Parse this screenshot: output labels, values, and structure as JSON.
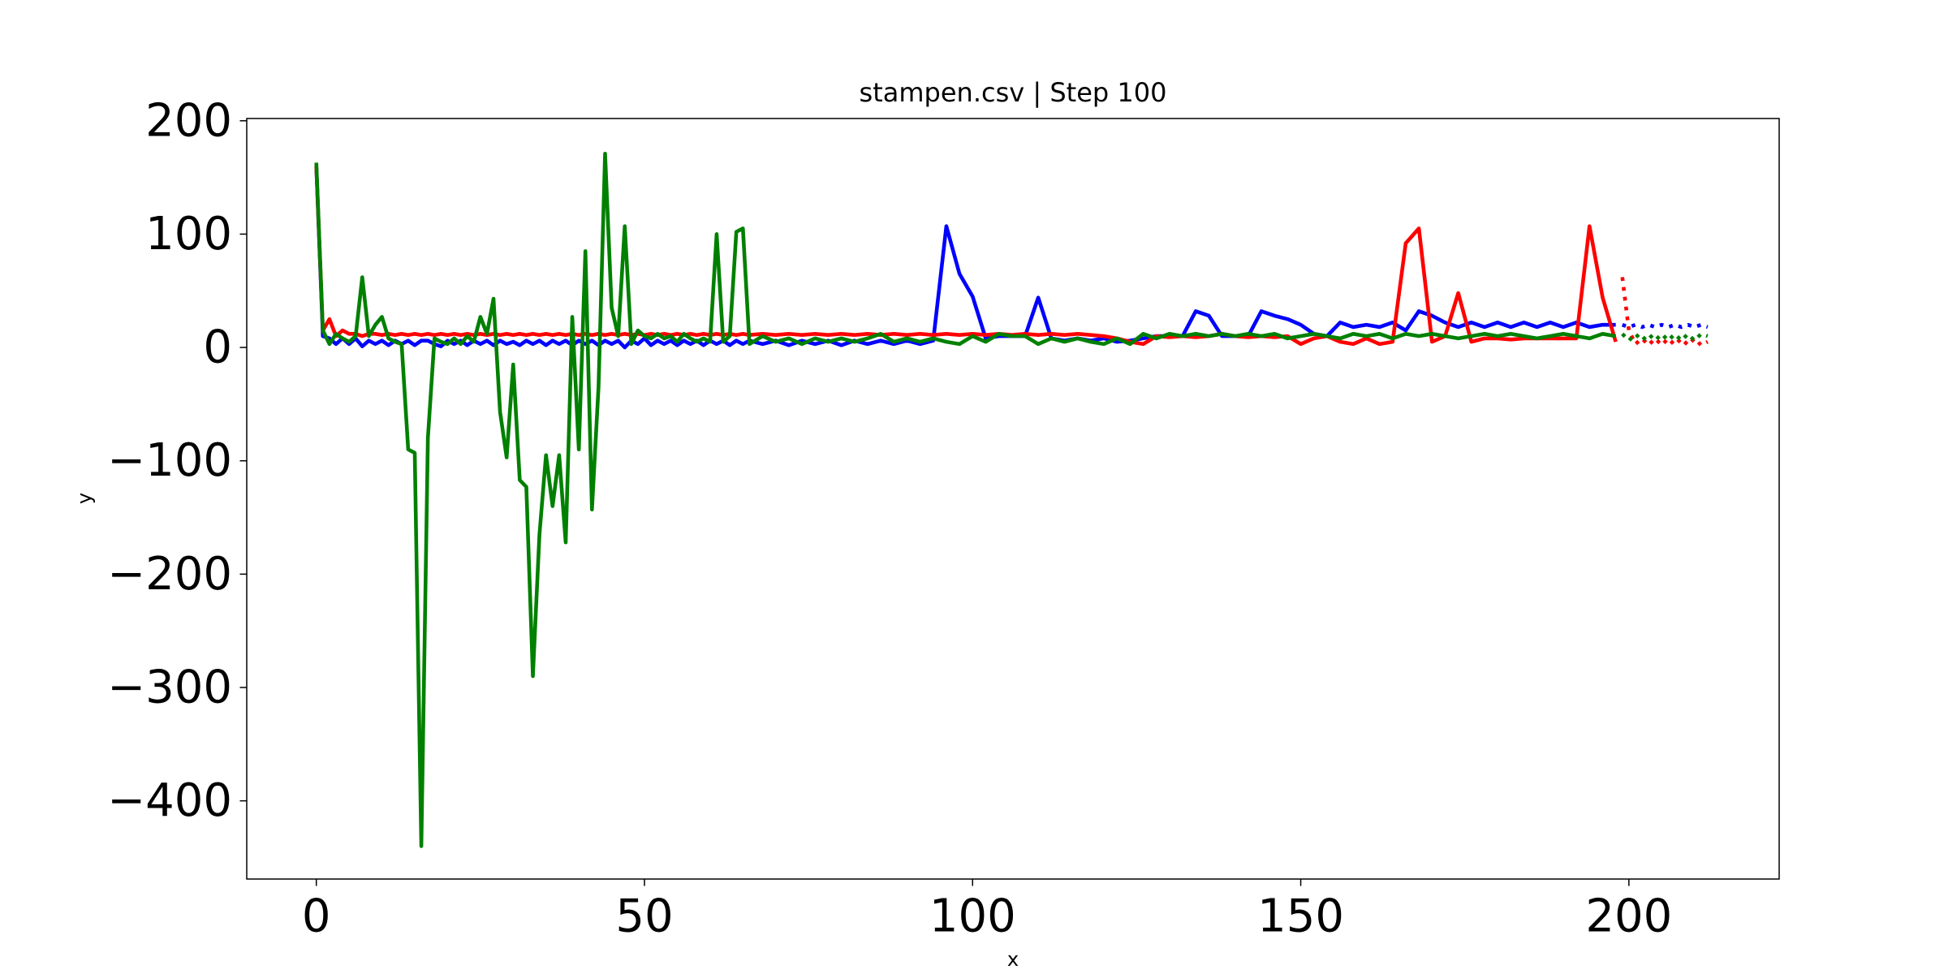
{
  "chart_data": {
    "type": "line",
    "title": "stampen.csv | Step 100",
    "xlabel": "x",
    "ylabel": "y",
    "xlim": [
      -10.6,
      222.9
    ],
    "ylim": [
      -469,
      202
    ],
    "xticks": [
      0,
      50,
      100,
      150,
      200
    ],
    "yticks": [
      {
        "value": -400,
        "label": "−400"
      },
      {
        "value": -300,
        "label": "−300"
      },
      {
        "value": -200,
        "label": "−200"
      },
      {
        "value": -100,
        "label": "−100"
      },
      0,
      100,
      200
    ],
    "grid": false,
    "x": [
      0,
      1,
      2,
      3,
      4,
      5,
      6,
      7,
      8,
      9,
      10,
      11,
      12,
      13,
      14,
      15,
      16,
      17,
      18,
      19,
      20,
      21,
      22,
      23,
      24,
      25,
      26,
      27,
      28,
      29,
      30,
      31,
      32,
      33,
      34,
      35,
      36,
      37,
      38,
      39,
      40,
      41,
      42,
      43,
      44,
      45,
      46,
      47,
      48,
      49,
      50,
      51,
      52,
      53,
      54,
      55,
      56,
      57,
      58,
      59,
      60,
      61,
      62,
      63,
      64,
      65,
      66,
      68,
      70,
      72,
      74,
      76,
      78,
      80,
      82,
      84,
      86,
      88,
      90,
      92,
      94,
      96,
      98,
      100,
      102,
      104,
      106,
      108,
      110,
      112,
      114,
      116,
      118,
      120,
      122,
      124,
      126,
      128,
      130,
      132,
      134,
      136,
      138,
      140,
      142,
      144,
      146,
      148,
      150,
      152,
      154,
      156,
      158,
      160,
      162,
      164,
      166,
      168,
      170,
      172,
      174,
      176,
      178,
      180,
      182,
      184,
      186,
      188,
      190,
      192,
      194,
      196,
      198
    ],
    "series": [
      {
        "color": "#0000ff",
        "style": "solid",
        "values": [
          160,
          10,
          8,
          3,
          8,
          3,
          8,
          1,
          6,
          3,
          6,
          2,
          6,
          3,
          6,
          2,
          6,
          6,
          3,
          1,
          6,
          3,
          6,
          2,
          6,
          3,
          6,
          2,
          6,
          3,
          5,
          2,
          6,
          3,
          6,
          2,
          6,
          3,
          6,
          2,
          6,
          3,
          6,
          2,
          6,
          3,
          6,
          0,
          6,
          3,
          8,
          2,
          6,
          3,
          6,
          2,
          6,
          3,
          6,
          2,
          6,
          3,
          6,
          2,
          6,
          3,
          6,
          3,
          6,
          2,
          6,
          3,
          6,
          2,
          6,
          3,
          6,
          3,
          6,
          3,
          6,
          107,
          65,
          45,
          8,
          10,
          10,
          10,
          44,
          8,
          6,
          8,
          6,
          8,
          5,
          6,
          8,
          10,
          10,
          10,
          32,
          28,
          10,
          10,
          10,
          32,
          28,
          25,
          20,
          12,
          10,
          22,
          18,
          20,
          18,
          22,
          15,
          32,
          28,
          22,
          18,
          22,
          18,
          22,
          18,
          22,
          18,
          22,
          18,
          22,
          18,
          20,
          20
        ]
      },
      {
        "color": "#ff0000",
        "style": "solid",
        "values": [
          160,
          15,
          25,
          10,
          15,
          12,
          12,
          10,
          12,
          12,
          11,
          12,
          11,
          12,
          11,
          12,
          11,
          12,
          11,
          12,
          11,
          12,
          11,
          12,
          11,
          12,
          11,
          12,
          11,
          12,
          11,
          12,
          11,
          12,
          11,
          12,
          11,
          12,
          11,
          12,
          11,
          12,
          11,
          12,
          11,
          12,
          11,
          12,
          11,
          12,
          11,
          12,
          11,
          12,
          11,
          12,
          11,
          12,
          11,
          12,
          11,
          12,
          11,
          12,
          11,
          12,
          11,
          12,
          11,
          12,
          11,
          12,
          11,
          12,
          11,
          12,
          11,
          12,
          11,
          12,
          11,
          12,
          11,
          12,
          11,
          12,
          11,
          12,
          11,
          12,
          11,
          12,
          11,
          10,
          8,
          5,
          3,
          10,
          9,
          10,
          9,
          10,
          12,
          10,
          9,
          10,
          9,
          10,
          3,
          8,
          10,
          5,
          3,
          8,
          3,
          5,
          92,
          105,
          5,
          10,
          48,
          5,
          8,
          8,
          7,
          8,
          8,
          8,
          8,
          8,
          107,
          44,
          5
        ]
      },
      {
        "color": "#008000",
        "style": "solid",
        "values": [
          163,
          15,
          3,
          12,
          8,
          5,
          10,
          62,
          10,
          20,
          27,
          8,
          5,
          3,
          -90,
          -93,
          -440,
          -80,
          8,
          5,
          3,
          8,
          3,
          10,
          5,
          27,
          12,
          43,
          -57,
          -97,
          -15,
          -117,
          -123,
          -290,
          -165,
          -95,
          -140,
          -95,
          -172,
          27,
          -90,
          85,
          -143,
          -35,
          171,
          35,
          10,
          107,
          3,
          15,
          10,
          8,
          12,
          8,
          10,
          5,
          12,
          8,
          5,
          8,
          5,
          100,
          5,
          10,
          102,
          105,
          3,
          10,
          5,
          8,
          3,
          8,
          5,
          8,
          5,
          8,
          12,
          5,
          8,
          5,
          8,
          5,
          3,
          10,
          5,
          12,
          10,
          10,
          3,
          8,
          5,
          8,
          5,
          3,
          8,
          3,
          12,
          8,
          12,
          10,
          12,
          10,
          12,
          10,
          12,
          10,
          12,
          8,
          10,
          12,
          10,
          8,
          12,
          10,
          12,
          8,
          12,
          10,
          12,
          10,
          8,
          10,
          12,
          10,
          12,
          10,
          8,
          10,
          12,
          10,
          8,
          12,
          10
        ]
      },
      {
        "color": "#0000ff",
        "style": "dotted",
        "x": [
          199,
          200,
          201,
          202,
          203,
          204,
          205,
          206,
          207,
          208,
          209,
          210,
          211,
          212
        ],
        "values": [
          20,
          18,
          20,
          18,
          20,
          18,
          20,
          18,
          20,
          18,
          20,
          18,
          20,
          18
        ]
      },
      {
        "color": "#ff0000",
        "style": "dotted",
        "x": [
          199,
          200,
          201,
          202,
          203,
          204,
          205,
          206,
          207,
          208,
          209,
          210,
          211,
          212
        ],
        "values": [
          62,
          15,
          3,
          8,
          2,
          8,
          2,
          8,
          2,
          8,
          2,
          8,
          2,
          5
        ]
      },
      {
        "color": "#008000",
        "style": "dotted",
        "x": [
          199,
          200,
          201,
          202,
          203,
          204,
          205,
          206,
          207,
          208,
          209,
          210,
          211,
          212
        ],
        "values": [
          12,
          6,
          12,
          6,
          12,
          6,
          12,
          6,
          12,
          6,
          12,
          6,
          12,
          10
        ]
      }
    ]
  }
}
